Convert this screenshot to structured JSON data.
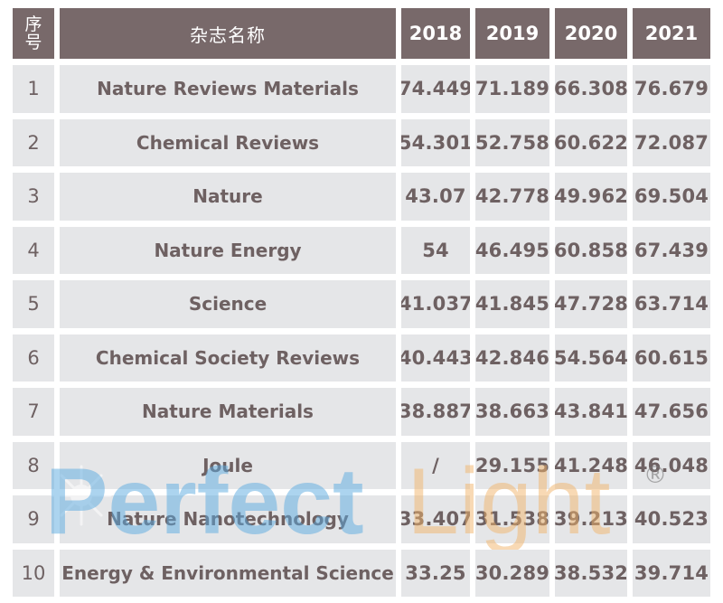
{
  "header": {
    "index_label_line1": "序",
    "index_label_line2": "号",
    "name_label": "杂志名称",
    "years": [
      "2018",
      "2019",
      "2020",
      "2021"
    ]
  },
  "rows": [
    {
      "index": "1",
      "name": "Nature Reviews Materials",
      "values": [
        "74.449",
        "71.189",
        "66.308",
        "76.679"
      ]
    },
    {
      "index": "2",
      "name": "Chemical Reviews",
      "values": [
        "54.301",
        "52.758",
        "60.622",
        "72.087"
      ]
    },
    {
      "index": "3",
      "name": "Nature",
      "values": [
        "43.07",
        "42.778",
        "49.962",
        "69.504"
      ]
    },
    {
      "index": "4",
      "name": "Nature Energy",
      "values": [
        "54",
        "46.495",
        "60.858",
        "67.439"
      ]
    },
    {
      "index": "5",
      "name": "Science",
      "values": [
        "41.037",
        "41.845",
        "47.728",
        "63.714"
      ]
    },
    {
      "index": "6",
      "name": "Chemical Society Reviews",
      "values": [
        "40.443",
        "42.846",
        "54.564",
        "60.615"
      ]
    },
    {
      "index": "7",
      "name": "Nature Materials",
      "values": [
        "38.887",
        "38.663",
        "43.841",
        "47.656"
      ]
    },
    {
      "index": "8",
      "name": "Joule",
      "values": [
        "/",
        "29.155",
        "41.248",
        "46.048"
      ]
    },
    {
      "index": "9",
      "name": "Nature Nanotechnology",
      "values": [
        "33.407",
        "31.538",
        "39.213",
        "40.523"
      ]
    },
    {
      "index": "10",
      "name": "Energy & Environmental Science",
      "values": [
        "33.25",
        "30.289",
        "38.532",
        "39.714"
      ]
    }
  ],
  "watermark": {
    "word1": "Perfect",
    "word2": "Light",
    "mark": "®",
    "color1": "#5aa9e0",
    "color2": "#f2b46a"
  },
  "colors": {
    "header_bg": "#78696a",
    "header_text": "#ffffff",
    "cell_bg": "#e5e6e8",
    "cell_text": "#6e6162"
  }
}
